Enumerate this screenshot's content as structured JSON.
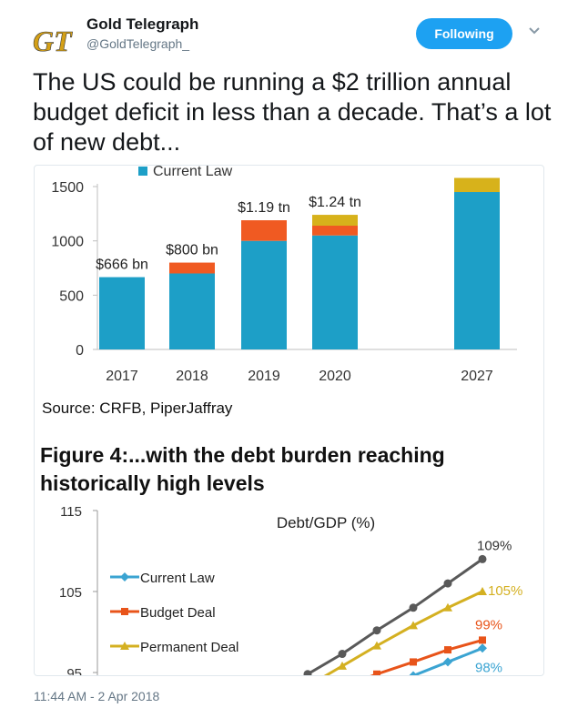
{
  "user": {
    "name": "Gold Telegraph",
    "handle": "@GoldTelegraph_",
    "avatar_text": "GT",
    "follow_label": "Following"
  },
  "tweet": {
    "text": "The US could be running a $2 trillion annual budget deficit in less than a decade. That’s a lot of new debt...",
    "timestamp": "11:44 AM - 2 Apr 2018"
  },
  "colors": {
    "accent": "#1da1f2",
    "bar_blue": "#1d9fc7",
    "bar_orange": "#f05a22",
    "bar_gold": "#d7b21b",
    "line_gray": "#595959",
    "line_orange": "#e8541a",
    "line_gold": "#d4b021",
    "line_blue": "#3ba4d2"
  },
  "chart_data": [
    {
      "type": "bar",
      "legend": [
        "Current Law"
      ],
      "categories": [
        "2017",
        "2018",
        "2019",
        "2020",
        "2027"
      ],
      "series": [
        {
          "name": "Current Law",
          "values": [
            666,
            700,
            1000,
            1050,
            1450
          ]
        },
        {
          "name": "",
          "values": [
            0,
            100,
            190,
            90,
            0
          ]
        },
        {
          "name": "",
          "values": [
            0,
            0,
            0,
            100,
            130
          ]
        }
      ],
      "data_labels": [
        "$666 bn",
        "$800 bn",
        "$1.19 tn",
        "$1.24 tn",
        ""
      ],
      "yticks": [
        "0",
        "500",
        "1000",
        "1500"
      ],
      "ylim": [
        0,
        1520
      ],
      "source": "Source: CRFB, PiperJaffray"
    },
    {
      "type": "line",
      "title": "Figure 4:...with the debt burden reaching historically high levels",
      "subtitle": "Debt/GDP (%)",
      "yticks": [
        "115",
        "105",
        "95"
      ],
      "ylim": [
        93,
        115
      ],
      "series": [
        {
          "name": "Current Law",
          "end_label": "98%"
        },
        {
          "name": "Budget Deal",
          "end_label": "99%"
        },
        {
          "name": "Permanent Deal",
          "end_label": "105%"
        },
        {
          "name": "",
          "end_label": "109%"
        }
      ],
      "end_values": [
        109,
        105,
        99,
        98
      ]
    }
  ]
}
